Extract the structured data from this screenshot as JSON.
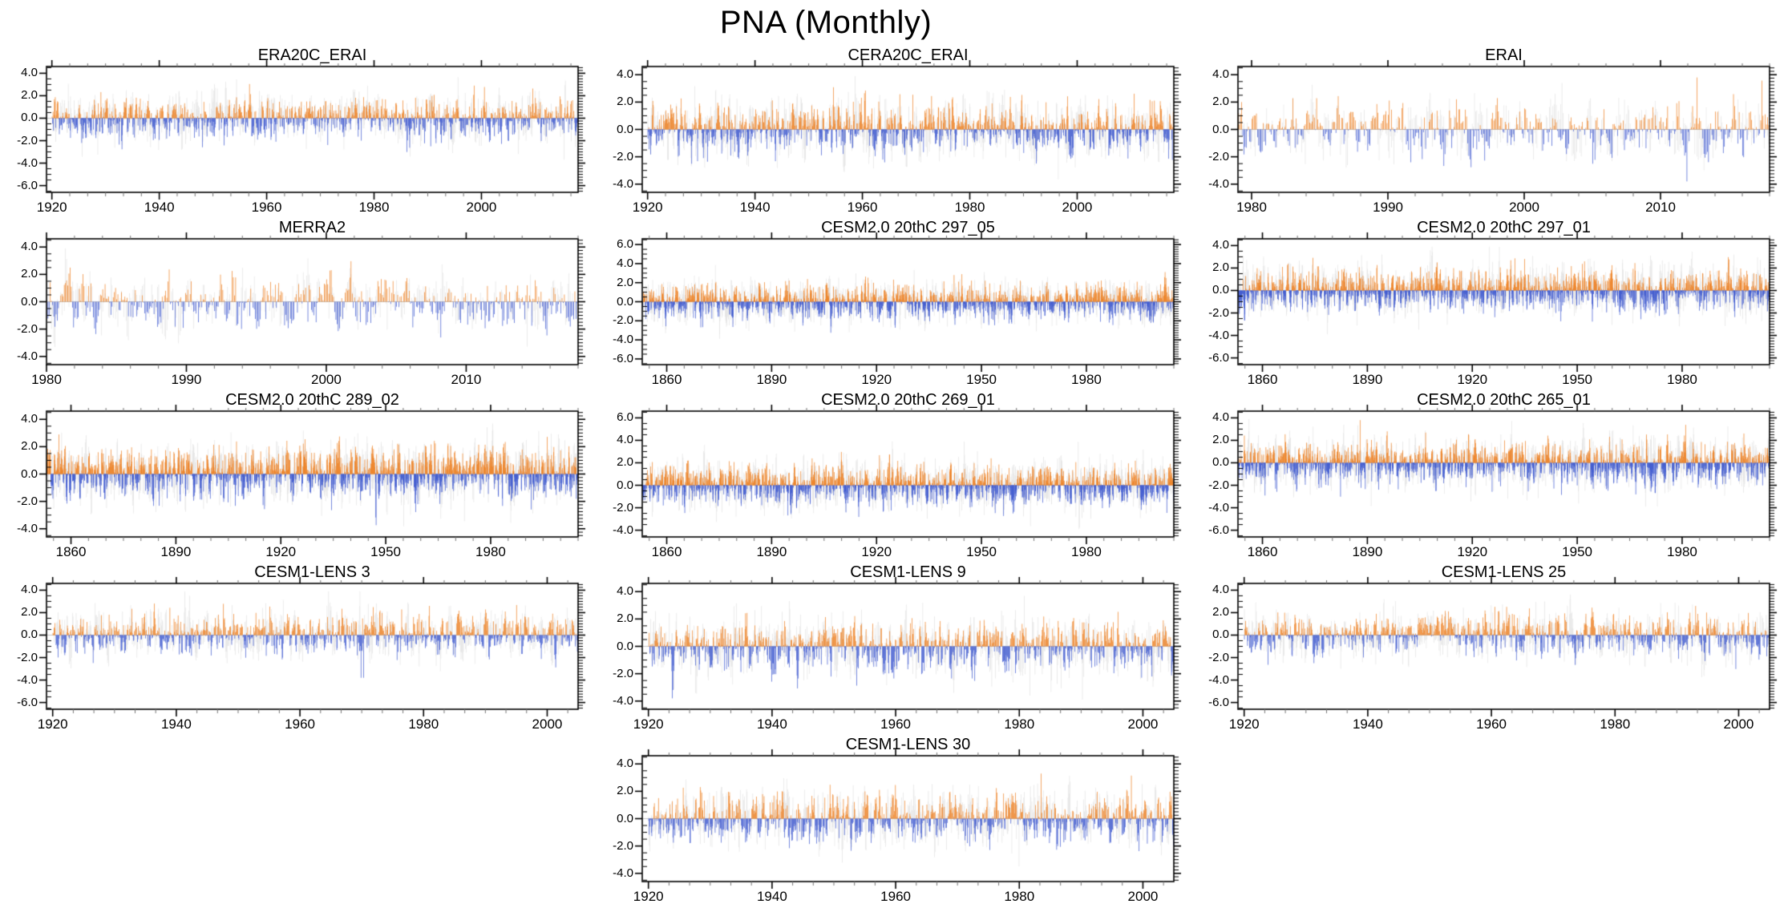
{
  "page_title": "PNA (Monthly)",
  "encoding": {
    "positive_bar_color": "#ED8023",
    "negative_bar_color": "#3C57CE",
    "background_bar_color": "#E3E3E3",
    "zero_line_color": "#C6C6C6",
    "frame_color": "#000000",
    "minor_tick_color": "#777777"
  },
  "grid": {
    "rows": 5,
    "cols": 3
  },
  "chart_data": [
    {
      "type": "bar",
      "title": "ERA20C_ERAI",
      "grid_row": 1,
      "grid_col": 1,
      "x_start": 1919,
      "x_end": 2018,
      "data_start": 1920,
      "xticks": [
        1920,
        1940,
        1960,
        1980,
        2000
      ],
      "xtick_labels": [
        "1920",
        "1940",
        "1960",
        "1980",
        "2000"
      ],
      "x_minor_step": 3.3333,
      "yticks": [
        4,
        2,
        0,
        -2,
        -4,
        -6
      ],
      "ytick_labels": [
        "4.0",
        "2.0",
        "0.0",
        "-2.0",
        "-4.0",
        "-6.0"
      ],
      "ylim": [
        -6.6,
        4.6
      ],
      "y_minor_step": 0.5,
      "approx_value_range": [
        -3.7,
        3.5
      ],
      "seed": 101
    },
    {
      "type": "bar",
      "title": "CERA20C_ERAI",
      "grid_row": 1,
      "grid_col": 2,
      "x_start": 1919,
      "x_end": 2018,
      "data_start": 1920,
      "xticks": [
        1920,
        1940,
        1960,
        1980,
        2000
      ],
      "xtick_labels": [
        "1920",
        "1940",
        "1960",
        "1980",
        "2000"
      ],
      "x_minor_step": 3.3333,
      "yticks": [
        4,
        2,
        0,
        -2,
        -4
      ],
      "ytick_labels": [
        "4.0",
        "2.0",
        "0.0",
        "-2.0",
        "-4.0"
      ],
      "ylim": [
        -4.6,
        4.6
      ],
      "y_minor_step": 0.5,
      "approx_value_range": [
        -3.4,
        3.4
      ],
      "seed": 102
    },
    {
      "type": "bar",
      "title": "ERAI",
      "grid_row": 1,
      "grid_col": 3,
      "x_start": 1979,
      "x_end": 2018,
      "data_start": 1979,
      "xticks": [
        1980,
        1990,
        2000,
        2010
      ],
      "xtick_labels": [
        "1980",
        "1990",
        "2000",
        "2010"
      ],
      "x_minor_step": 2,
      "yticks": [
        4,
        2,
        0,
        -2,
        -4
      ],
      "ytick_labels": [
        "4.0",
        "2.0",
        "0.0",
        "-2.0",
        "-4.0"
      ],
      "ylim": [
        -4.6,
        4.6
      ],
      "y_minor_step": 0.5,
      "approx_value_range": [
        -3.2,
        3.4
      ],
      "seed": 103
    },
    {
      "type": "bar",
      "title": "MERRA2",
      "grid_row": 2,
      "grid_col": 1,
      "x_start": 1980,
      "x_end": 2018,
      "data_start": 1980,
      "xticks": [
        1980,
        1990,
        2000,
        2010
      ],
      "xtick_labels": [
        "1980",
        "1990",
        "2000",
        "2010"
      ],
      "x_minor_step": 2,
      "yticks": [
        4,
        2,
        0,
        -2,
        -4
      ],
      "ytick_labels": [
        "4.0",
        "2.0",
        "0.0",
        "-2.0",
        "-4.0"
      ],
      "ylim": [
        -4.6,
        4.6
      ],
      "y_minor_step": 0.5,
      "approx_value_range": [
        -3.3,
        3.5
      ],
      "seed": 104
    },
    {
      "type": "bar",
      "title": "CESM2.0 20thC 297_05",
      "grid_row": 2,
      "grid_col": 2,
      "x_start": 1853,
      "x_end": 2005,
      "data_start": 1853,
      "xticks": [
        1860,
        1890,
        1920,
        1950,
        1980
      ],
      "xtick_labels": [
        "1860",
        "1890",
        "1920",
        "1950",
        "1980"
      ],
      "x_minor_step": 5,
      "yticks": [
        6,
        4,
        2,
        0,
        -2,
        -4,
        -6
      ],
      "ytick_labels": [
        "6.0",
        "4.0",
        "2.0",
        "0.0",
        "-2.0",
        "-4.0",
        "-6.0"
      ],
      "ylim": [
        -6.6,
        6.6
      ],
      "y_minor_step": 0.5,
      "approx_value_range": [
        -3.5,
        4.0
      ],
      "seed": 105
    },
    {
      "type": "bar",
      "title": "CESM2.0 20thC 297_01",
      "grid_row": 2,
      "grid_col": 3,
      "x_start": 1853,
      "x_end": 2005,
      "data_start": 1853,
      "xticks": [
        1860,
        1890,
        1920,
        1950,
        1980
      ],
      "xtick_labels": [
        "1860",
        "1890",
        "1920",
        "1950",
        "1980"
      ],
      "x_minor_step": 5,
      "yticks": [
        4,
        2,
        0,
        -2,
        -4,
        -6
      ],
      "ytick_labels": [
        "4.0",
        "2.0",
        "0.0",
        "-2.0",
        "-4.0",
        "-6.0"
      ],
      "ylim": [
        -6.6,
        4.6
      ],
      "y_minor_step": 0.5,
      "approx_value_range": [
        -3.6,
        3.4
      ],
      "seed": 106
    },
    {
      "type": "bar",
      "title": "CESM2.0 20thC 289_02",
      "grid_row": 3,
      "grid_col": 1,
      "x_start": 1853,
      "x_end": 2005,
      "data_start": 1853,
      "xticks": [
        1860,
        1890,
        1920,
        1950,
        1980
      ],
      "xtick_labels": [
        "1860",
        "1890",
        "1920",
        "1950",
        "1980"
      ],
      "x_minor_step": 5,
      "yticks": [
        4,
        2,
        0,
        -2,
        -4
      ],
      "ytick_labels": [
        "4.0",
        "2.0",
        "0.0",
        "-2.0",
        "-4.0"
      ],
      "ylim": [
        -4.6,
        4.6
      ],
      "y_minor_step": 0.5,
      "approx_value_range": [
        -3.6,
        3.7
      ],
      "seed": 107
    },
    {
      "type": "bar",
      "title": "CESM2.0 20thC 269_01",
      "grid_row": 3,
      "grid_col": 2,
      "x_start": 1853,
      "x_end": 2005,
      "data_start": 1853,
      "xticks": [
        1860,
        1890,
        1920,
        1950,
        1980
      ],
      "xtick_labels": [
        "1860",
        "1890",
        "1920",
        "1950",
        "1980"
      ],
      "x_minor_step": 5,
      "yticks": [
        6,
        4,
        2,
        0,
        -2,
        -4
      ],
      "ytick_labels": [
        "6.0",
        "4.0",
        "2.0",
        "0.0",
        "-2.0",
        "-4.0"
      ],
      "ylim": [
        -4.6,
        6.6
      ],
      "y_minor_step": 0.5,
      "approx_value_range": [
        -3.7,
        3.5
      ],
      "seed": 108
    },
    {
      "type": "bar",
      "title": "CESM2.0 20thC 265_01",
      "grid_row": 3,
      "grid_col": 3,
      "x_start": 1853,
      "x_end": 2005,
      "data_start": 1853,
      "xticks": [
        1860,
        1890,
        1920,
        1950,
        1980
      ],
      "xtick_labels": [
        "1860",
        "1890",
        "1920",
        "1950",
        "1980"
      ],
      "x_minor_step": 5,
      "yticks": [
        4,
        2,
        0,
        -2,
        -4,
        -6
      ],
      "ytick_labels": [
        "4.0",
        "2.0",
        "0.0",
        "-2.0",
        "-4.0",
        "-6.0"
      ],
      "ylim": [
        -6.6,
        4.6
      ],
      "y_minor_step": 0.5,
      "approx_value_range": [
        -3.5,
        3.4
      ],
      "seed": 109
    },
    {
      "type": "bar",
      "title": "CESM1-LENS 3",
      "grid_row": 4,
      "grid_col": 1,
      "x_start": 1919,
      "x_end": 2005,
      "data_start": 1920,
      "xticks": [
        1920,
        1940,
        1960,
        1980,
        2000
      ],
      "xtick_labels": [
        "1920",
        "1940",
        "1960",
        "1980",
        "2000"
      ],
      "x_minor_step": 3.3333,
      "yticks": [
        4,
        2,
        0,
        -2,
        -4,
        -6
      ],
      "ytick_labels": [
        "4.0",
        "2.0",
        "0.0",
        "-2.0",
        "-4.0",
        "-6.0"
      ],
      "ylim": [
        -6.6,
        4.6
      ],
      "y_minor_step": 0.5,
      "approx_value_range": [
        -3.7,
        3.2
      ],
      "seed": 110
    },
    {
      "type": "bar",
      "title": "CESM1-LENS 9",
      "grid_row": 4,
      "grid_col": 2,
      "x_start": 1919,
      "x_end": 2005,
      "data_start": 1920,
      "xticks": [
        1920,
        1940,
        1960,
        1980,
        2000
      ],
      "xtick_labels": [
        "1920",
        "1940",
        "1960",
        "1980",
        "2000"
      ],
      "x_minor_step": 3.3333,
      "yticks": [
        4,
        2,
        0,
        -2,
        -4
      ],
      "ytick_labels": [
        "4.0",
        "2.0",
        "0.0",
        "-2.0",
        "-4.0"
      ],
      "ylim": [
        -4.6,
        4.6
      ],
      "y_minor_step": 0.5,
      "approx_value_range": [
        -3.9,
        3.8
      ],
      "seed": 111
    },
    {
      "type": "bar",
      "title": "CESM1-LENS 25",
      "grid_row": 4,
      "grid_col": 3,
      "x_start": 1919,
      "x_end": 2005,
      "data_start": 1920,
      "xticks": [
        1920,
        1940,
        1960,
        1980,
        2000
      ],
      "xtick_labels": [
        "1920",
        "1940",
        "1960",
        "1980",
        "2000"
      ],
      "x_minor_step": 3.3333,
      "yticks": [
        4,
        2,
        0,
        -2,
        -4,
        -6
      ],
      "ytick_labels": [
        "4.0",
        "2.0",
        "0.0",
        "-2.0",
        "-4.0",
        "-6.0"
      ],
      "ylim": [
        -6.6,
        4.6
      ],
      "y_minor_step": 0.5,
      "approx_value_range": [
        -3.9,
        3.7
      ],
      "seed": 112
    },
    {
      "type": "bar",
      "title": "CESM1-LENS 30",
      "grid_row": 5,
      "grid_col": 2,
      "x_start": 1919,
      "x_end": 2005,
      "data_start": 1920,
      "xticks": [
        1920,
        1940,
        1960,
        1980,
        2000
      ],
      "xtick_labels": [
        "1920",
        "1940",
        "1960",
        "1980",
        "2000"
      ],
      "x_minor_step": 3.3333,
      "yticks": [
        4,
        2,
        0,
        -2,
        -4
      ],
      "ytick_labels": [
        "4.0",
        "2.0",
        "0.0",
        "-2.0",
        "-4.0"
      ],
      "ylim": [
        -4.6,
        4.6
      ],
      "y_minor_step": 0.5,
      "approx_value_range": [
        -3.6,
        3.4
      ],
      "seed": 113
    }
  ]
}
